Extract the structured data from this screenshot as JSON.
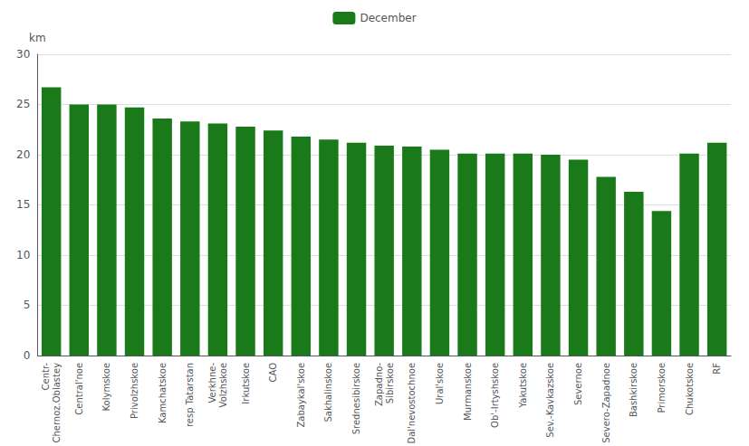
{
  "chart_data": {
    "type": "bar",
    "ylabel": "km",
    "categories": [
      "Centr-\nChernoz.Oblastey",
      "Central'noe",
      "Kolymskoe",
      "Privolzhskoe",
      "Kamchatskoe",
      "resp Tatarstan",
      "Verkhne-\nVolzhskoe",
      "Irkutskoe",
      "CAO",
      "Zabaykal'skoe",
      "Sakhalinskoe",
      "Srednesibirskoe",
      "Zapadno-\nSibirskoe",
      "Dal'nevostochnoe",
      "Ural'skoe",
      "Murmanskoe",
      "Ob'-Irtyshskoe",
      "Yakutskoe",
      "Sev.-Kavkazskoe",
      "Severnoe",
      "Severo-Zapadnoe",
      "Bashkirskoe",
      "Primorskoe",
      "Chukotskoe",
      "RF"
    ],
    "series": [
      {
        "name": "December",
        "color": "#1a7a1a",
        "values": [
          26.7,
          25.0,
          25.0,
          24.7,
          23.6,
          23.3,
          23.1,
          22.8,
          22.4,
          21.8,
          21.5,
          21.2,
          20.9,
          20.8,
          20.5,
          20.1,
          20.1,
          20.1,
          20.0,
          19.5,
          17.8,
          16.3,
          14.4,
          20.1,
          21.2
        ]
      }
    ],
    "ylim": [
      0,
      30
    ],
    "yticks": [
      0,
      5,
      10,
      15,
      20,
      25,
      30
    ],
    "grid": true,
    "legend": "top"
  }
}
